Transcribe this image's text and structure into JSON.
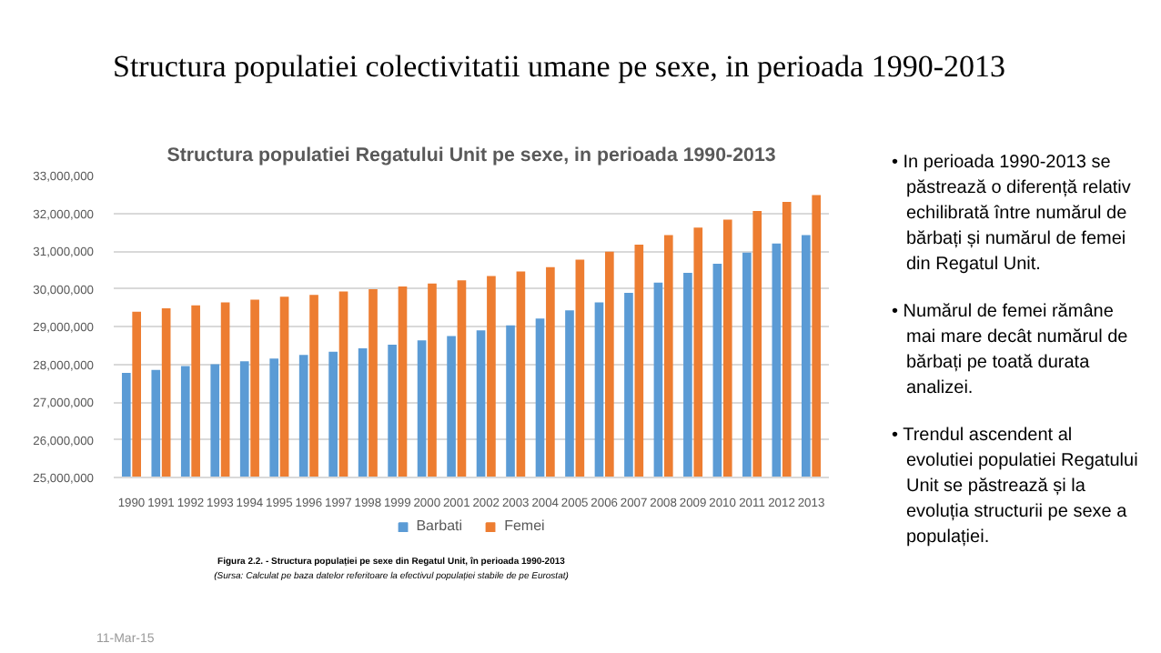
{
  "chart_data": {
    "type": "bar",
    "title": "Structura populatiei colectivitatii umane pe sexe, in perioada 1990-2013",
    "subtitle": "Structura populatiei Regatului Unit pe sexe, in perioada 1990-2013",
    "categories": [
      "1990",
      "1991",
      "1992",
      "1993",
      "1994",
      "1995",
      "1996",
      "1997",
      "1998",
      "1999",
      "2000",
      "2001",
      "2002",
      "2003",
      "2004",
      "2005",
      "2006",
      "2007",
      "2008",
      "2009",
      "2010",
      "2011",
      "2012",
      "2013"
    ],
    "series": [
      {
        "name": "Barbati",
        "color": "#5b9bd5",
        "values": [
          27770000,
          27850000,
          27950000,
          28000000,
          28080000,
          28150000,
          28250000,
          28330000,
          28420000,
          28520000,
          28630000,
          28750000,
          28900000,
          29030000,
          29210000,
          29430000,
          29640000,
          29890000,
          30160000,
          30420000,
          30660000,
          30960000,
          31200000,
          31420000
        ]
      },
      {
        "name": "Femei",
        "color": "#ed7d31",
        "values": [
          29390000,
          29480000,
          29560000,
          29640000,
          29710000,
          29790000,
          29840000,
          29930000,
          29990000,
          30060000,
          30140000,
          30220000,
          30340000,
          30460000,
          30570000,
          30770000,
          30980000,
          31170000,
          31420000,
          31620000,
          31830000,
          32060000,
          32300000,
          32480000
        ]
      }
    ],
    "ylim": [
      25000000,
      33000000
    ],
    "yticks": [
      {
        "value": 25000000,
        "label": "25,000,000"
      },
      {
        "value": 26000000,
        "label": "26,000,000"
      },
      {
        "value": 27000000,
        "label": "27,000,000"
      },
      {
        "value": 28000000,
        "label": "28,000,000"
      },
      {
        "value": 29000000,
        "label": "29,000,000"
      },
      {
        "value": 30000000,
        "label": "30,000,000"
      },
      {
        "value": 31000000,
        "label": "31,000,000"
      },
      {
        "value": 32000000,
        "label": "32,000,000"
      },
      {
        "value": 33000000,
        "label": "33,000,000"
      }
    ],
    "grid": "y",
    "legend": "bottom",
    "annotations": [
      "• In perioada 1990-2013 se păstrează o diferență relativ echilibrată între numărul de bărbați și numărul de femei din Regatul Unit.",
      "• Numărul de femei rămâne mai mare decât numărul de bărbați pe toată durata analizei.",
      "• Trendul ascendent al evolutiei populatiei Regatului Unit se păstrează și la evoluția structurii pe sexe a populației.",
      "Figura 2.2. - Structura populației pe sexe din Regatul Unit, în perioada 1990-2013",
      "(Sursa: Calculat pe baza datelor referitoare la efectivul populației stabile de pe Eurostat)",
      "11-Mar-15"
    ]
  }
}
